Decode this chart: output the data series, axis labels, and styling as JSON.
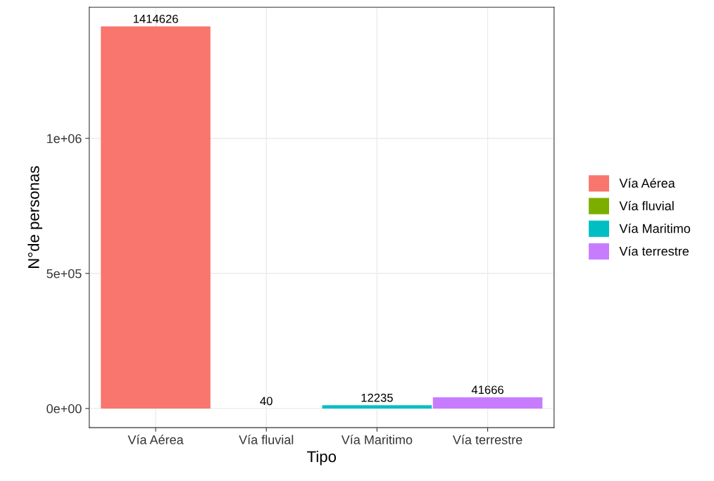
{
  "chart_data": {
    "type": "bar",
    "xlabel": "Tipo",
    "ylabel": "N°de personas",
    "categories": [
      "Vía Aérea",
      "Vía fluvial",
      "Vía Maritimo",
      "Vía terrestre"
    ],
    "series": [
      {
        "name": "Vía Aérea",
        "color": "#f8766d",
        "values": [
          1414626,
          null,
          null,
          null
        ]
      },
      {
        "name": "Vía fluvial",
        "color": "#7cae00",
        "values": [
          null,
          40,
          null,
          null
        ]
      },
      {
        "name": "Vía Maritimo",
        "color": "#00bfc4",
        "values": [
          null,
          null,
          12235,
          null
        ]
      },
      {
        "name": "Vía terrestre",
        "color": "#c77cff",
        "values": [
          null,
          null,
          null,
          41666
        ]
      }
    ],
    "ylim": [
      -70731.3,
      1485357.3
    ],
    "yticks": [
      {
        "value": 0,
        "label": "0e+00"
      },
      {
        "value": 500000,
        "label": "5e+05"
      },
      {
        "value": 1000000,
        "label": "1e+06"
      }
    ],
    "data_labels": true,
    "grid": true,
    "legend": "right"
  }
}
